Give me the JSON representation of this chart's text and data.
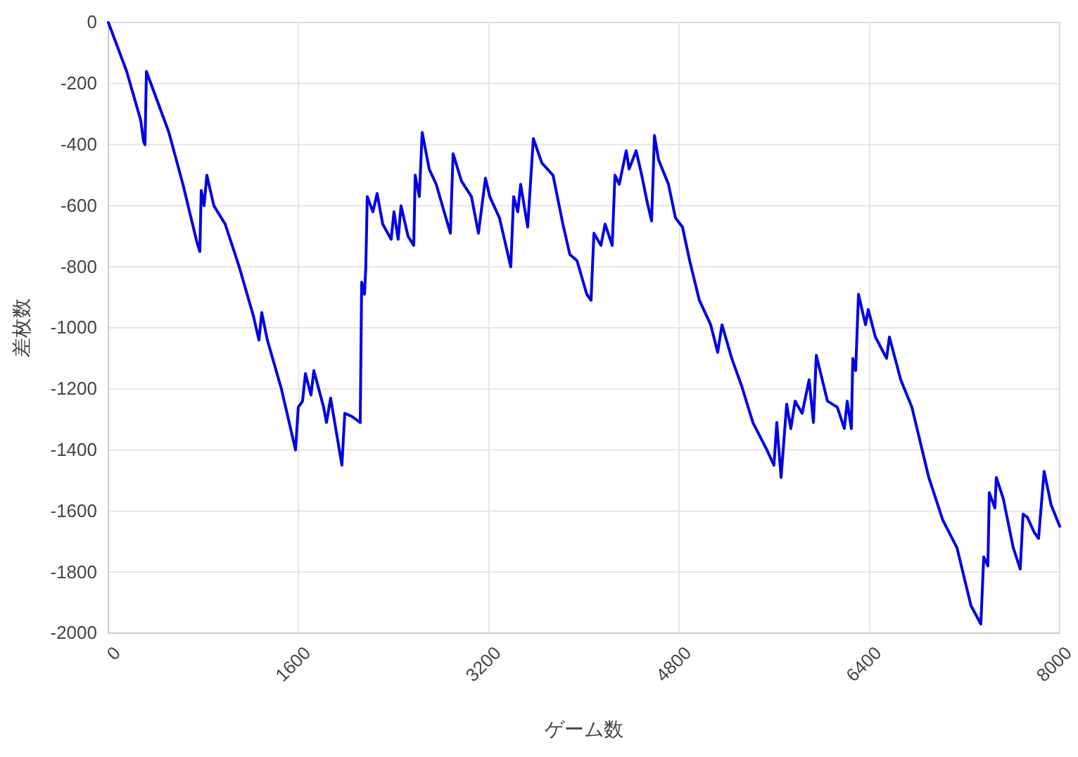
{
  "chart_data": {
    "type": "line",
    "xlabel": "ゲーム数",
    "ylabel": "差枚数",
    "x": [
      0,
      154,
      272,
      296,
      308,
      320,
      509,
      627,
      745,
      769,
      781,
      805,
      828,
      887,
      982,
      1100,
      1219,
      1266,
      1290,
      1337,
      1455,
      1574,
      1597,
      1633,
      1657,
      1704,
      1728,
      1810,
      1834,
      1869,
      1964,
      1988,
      2047,
      2118,
      2130,
      2154,
      2165,
      2177,
      2225,
      2260,
      2307,
      2378,
      2402,
      2437,
      2461,
      2520,
      2568,
      2580,
      2615,
      2639,
      2698,
      2757,
      2876,
      2899,
      2970,
      3053,
      3112,
      3171,
      3207,
      3289,
      3384,
      3408,
      3443,
      3467,
      3526,
      3574,
      3645,
      3739,
      3822,
      3881,
      3941,
      4023,
      4059,
      4083,
      4142,
      4177,
      4237,
      4260,
      4296,
      4355,
      4379,
      4438,
      4485,
      4532,
      4568,
      4592,
      4627,
      4710,
      4769,
      4828,
      4888,
      4970,
      5065,
      5124,
      5160,
      5242,
      5325,
      5420,
      5538,
      5597,
      5621,
      5657,
      5704,
      5739,
      5775,
      5834,
      5893,
      5929,
      5953,
      6047,
      6130,
      6189,
      6213,
      6248,
      6260,
      6284,
      6308,
      6367,
      6390,
      6450,
      6544,
      6568,
      6663,
      6757,
      6899,
      7017,
      7136,
      7254,
      7337,
      7361,
      7396,
      7408,
      7455,
      7467,
      7526,
      7609,
      7668,
      7692,
      7727,
      7786,
      7822,
      7869,
      7928,
      8000
    ],
    "series": [
      {
        "color": "#0000e6",
        "values": [
          0,
          -160,
          -320,
          -390,
          -400,
          -160,
          -360,
          -530,
          -720,
          -750,
          -550,
          -600,
          -500,
          -600,
          -660,
          -800,
          -960,
          -1040,
          -950,
          -1040,
          -1200,
          -1400,
          -1260,
          -1240,
          -1150,
          -1220,
          -1140,
          -1260,
          -1310,
          -1230,
          -1450,
          -1280,
          -1290,
          -1310,
          -850,
          -890,
          -800,
          -570,
          -620,
          -560,
          -660,
          -710,
          -620,
          -710,
          -600,
          -700,
          -730,
          -500,
          -570,
          -360,
          -480,
          -530,
          -690,
          -430,
          -520,
          -570,
          -690,
          -510,
          -570,
          -640,
          -800,
          -570,
          -620,
          -530,
          -670,
          -380,
          -460,
          -500,
          -660,
          -760,
          -780,
          -890,
          -910,
          -690,
          -730,
          -660,
          -730,
          -500,
          -530,
          -420,
          -480,
          -420,
          -500,
          -590,
          -650,
          -370,
          -450,
          -530,
          -640,
          -670,
          -780,
          -910,
          -990,
          -1080,
          -990,
          -1100,
          -1190,
          -1310,
          -1400,
          -1450,
          -1310,
          -1490,
          -1250,
          -1330,
          -1240,
          -1280,
          -1170,
          -1310,
          -1090,
          -1240,
          -1260,
          -1330,
          -1240,
          -1330,
          -1100,
          -1140,
          -890,
          -990,
          -940,
          -1030,
          -1100,
          -1030,
          -1170,
          -1260,
          -1490,
          -1630,
          -1720,
          -1910,
          -1970,
          -1750,
          -1780,
          -1540,
          -1590,
          -1490,
          -1560,
          -1720,
          -1790,
          -1610,
          -1620,
          -1670,
          -1690,
          -1470,
          -1580,
          -1650
        ]
      }
    ],
    "xlim": [
      0,
      8000
    ],
    "xticks": [
      0,
      1600,
      3200,
      4800,
      6400,
      8000
    ],
    "ylim": [
      -2000,
      0
    ],
    "yticks": [
      -2000,
      -1800,
      -1600,
      -1400,
      -1200,
      -1000,
      -800,
      -600,
      -400,
      -200,
      0
    ],
    "grid": true,
    "marker": "none",
    "line_style": "solid"
  }
}
